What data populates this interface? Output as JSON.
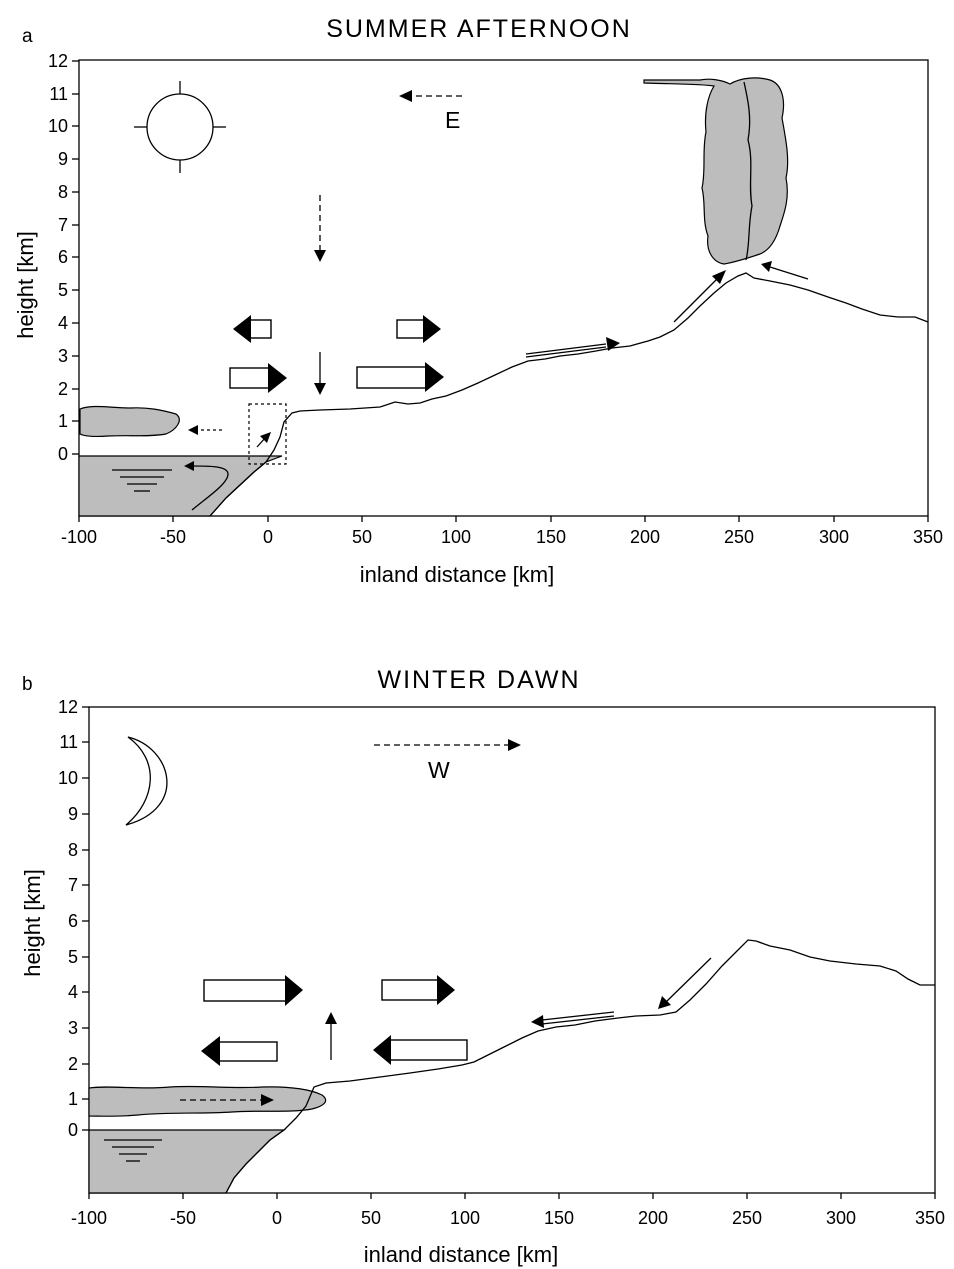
{
  "panels": [
    {
      "label": "a",
      "title": "SUMMER  AFTERNOON",
      "ylabel": "height [km]",
      "xlabel": "inland distance [km]",
      "y_ticks": [
        "0",
        "1",
        "2",
        "3",
        "4",
        "5",
        "6",
        "7",
        "8",
        "9",
        "10",
        "11",
        "12"
      ],
      "x_ticks": [
        "-100",
        "-50",
        "0",
        "50",
        "100",
        "150",
        "200",
        "250",
        "300",
        "350"
      ],
      "wind_label": "E",
      "sky_icon": "sun-icon"
    },
    {
      "label": "b",
      "title": "WINTER   DAWN",
      "ylabel": "height [km]",
      "xlabel": "inland distance [km]",
      "y_ticks": [
        "0",
        "1",
        "2",
        "3",
        "4",
        "5",
        "6",
        "7",
        "8",
        "9",
        "10",
        "11",
        "12"
      ],
      "x_ticks": [
        "-100",
        "-50",
        "0",
        "50",
        "100",
        "150",
        "200",
        "250",
        "300",
        "350"
      ],
      "wind_label": "W",
      "sky_icon": "moon-icon"
    }
  ]
}
